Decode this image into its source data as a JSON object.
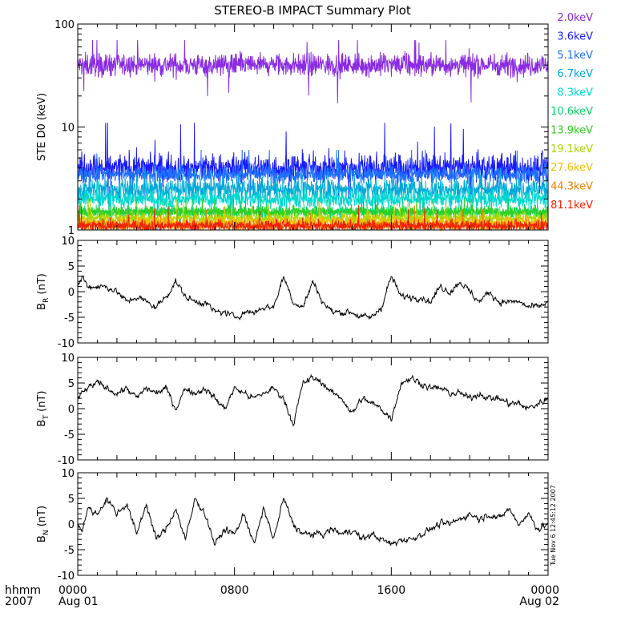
{
  "title": "STEREO-B IMPACT Summary Plot",
  "timestamp": "Tue Nov  6 12:45:12 2007",
  "time_axis": {
    "corner_top": "hhmm",
    "corner_bottom": "2007",
    "ticks": [
      {
        "label": "0000",
        "sub": "Aug 01",
        "hour": 0
      },
      {
        "label": "0800",
        "sub": "",
        "hour": 8
      },
      {
        "label": "1600",
        "sub": "",
        "hour": 16
      },
      {
        "label": "0000",
        "sub": "Aug 02",
        "hour": 24
      }
    ]
  },
  "energy_legend": [
    {
      "label": "2.0keV",
      "color": "#8a2be2"
    },
    {
      "label": "3.6keV",
      "color": "#1a1aff"
    },
    {
      "label": "5.1keV",
      "color": "#1e6fff"
    },
    {
      "label": "6.7keV",
      "color": "#00a8d8"
    },
    {
      "label": "8.3keV",
      "color": "#00d8d0"
    },
    {
      "label": "10.6keV",
      "color": "#00d868"
    },
    {
      "label": "13.9keV",
      "color": "#30d020"
    },
    {
      "label": "19.1keV",
      "color": "#a8d800"
    },
    {
      "label": "27.6keV",
      "color": "#f0c000"
    },
    {
      "label": "44.3keV",
      "color": "#f08000"
    },
    {
      "label": "81.1keV",
      "color": "#f02000"
    }
  ],
  "chart_data": [
    {
      "type": "line",
      "ylabel": "STE D0 (keV)",
      "yscale": "log",
      "ylim": [
        1,
        100
      ],
      "ytick_labels": [
        "1",
        "10",
        "100"
      ],
      "xlim_hours": [
        0,
        24
      ],
      "series": [
        {
          "name": "2.0keV",
          "color": "#8a2be2",
          "mean": 40,
          "range": [
            17,
            70
          ]
        },
        {
          "name": "3.6keV",
          "color": "#1a1aff",
          "mean": 4,
          "range": [
            2,
            11
          ]
        },
        {
          "name": "5.1keV",
          "color": "#1e6fff",
          "mean": 3.5,
          "range": [
            2,
            6
          ]
        },
        {
          "name": "6.7keV",
          "color": "#00a8d8",
          "mean": 2.5,
          "range": [
            1,
            4
          ]
        },
        {
          "name": "8.3keV",
          "color": "#00d8d0",
          "mean": 2,
          "range": [
            1,
            3
          ]
        },
        {
          "name": "10.6keV",
          "color": "#00d868",
          "mean": 1.5,
          "range": [
            1,
            2
          ]
        },
        {
          "name": "13.9keV",
          "color": "#30d020",
          "mean": 1.5,
          "range": [
            1,
            2
          ]
        },
        {
          "name": "19.1keV",
          "color": "#a8d800",
          "mean": 1.3,
          "range": [
            1,
            2
          ]
        },
        {
          "name": "27.6keV",
          "color": "#f0c000",
          "mean": 1.2,
          "range": [
            1,
            2
          ]
        },
        {
          "name": "44.3keV",
          "color": "#f08000",
          "mean": 1.1,
          "range": [
            1,
            2
          ]
        },
        {
          "name": "81.1keV",
          "color": "#f02000",
          "mean": 1.1,
          "range": [
            1,
            2
          ]
        }
      ]
    },
    {
      "type": "line",
      "ylabel_base": "B",
      "ylabel_sub": "R",
      "ylabel_unit": " (nT)",
      "ylim": [
        -10,
        10
      ],
      "ytick_labels": [
        "-10",
        "-5",
        "0",
        "5",
        "10"
      ],
      "xlim_hours": [
        0,
        24
      ],
      "x": [
        0,
        0.25,
        0.5,
        1,
        1.5,
        2,
        2.5,
        3,
        3.5,
        4,
        4.5,
        5,
        5.5,
        6,
        6.5,
        7,
        7.5,
        8,
        8.5,
        9,
        9.5,
        10,
        10.5,
        11,
        11.5,
        12,
        12.5,
        13,
        13.5,
        14,
        14.5,
        15,
        15.5,
        16,
        16.5,
        17,
        17.5,
        18,
        18.5,
        19,
        19.5,
        20,
        20.5,
        21,
        21.5,
        22,
        22.5,
        23,
        23.5,
        24
      ],
      "values": [
        1,
        3,
        1,
        1,
        1,
        0,
        -2,
        -1,
        -2,
        -3,
        -1,
        2,
        -1,
        -2,
        -2,
        -4,
        -4,
        -5,
        -4,
        -4,
        -3,
        -3,
        3,
        -2,
        -3,
        2,
        -2,
        -4,
        -4,
        -4,
        -5,
        -5,
        -3,
        3,
        -1,
        -1,
        -1,
        -2,
        1,
        0,
        2,
        0,
        -2,
        0,
        -2,
        -2,
        -2,
        -3,
        -3,
        -2
      ],
      "series": [
        {
          "name": "",
          "color": "#000000"
        }
      ]
    },
    {
      "type": "line",
      "ylabel_base": "B",
      "ylabel_sub": "T",
      "ylabel_unit": " (nT)",
      "ylim": [
        -10,
        10
      ],
      "ytick_labels": [
        "-10",
        "-5",
        "0",
        "5",
        "10"
      ],
      "xlim_hours": [
        0,
        24
      ],
      "x": [
        0,
        0.25,
        0.5,
        1,
        1.5,
        2,
        2.5,
        3,
        3.5,
        4,
        4.5,
        5,
        5.5,
        6,
        6.5,
        7,
        7.5,
        8,
        8.5,
        9,
        9.5,
        10,
        10.5,
        11,
        11.5,
        12,
        12.5,
        13,
        13.5,
        14,
        14.5,
        15,
        15.5,
        16,
        16.5,
        17,
        17.5,
        18,
        18.5,
        19,
        19.5,
        20,
        20.5,
        21,
        21.5,
        22,
        22.5,
        23,
        23.5,
        24
      ],
      "values": [
        2,
        3,
        4,
        5,
        4,
        3,
        4,
        2,
        4,
        3,
        4,
        0,
        4,
        3,
        4,
        2,
        0,
        4,
        3,
        2,
        3,
        4,
        2,
        -3,
        5,
        6,
        5,
        3,
        2,
        -1,
        2,
        1,
        0,
        -2,
        5,
        6,
        5,
        4,
        4,
        3,
        3,
        2,
        3,
        2,
        2,
        1,
        1,
        0,
        1,
        2
      ],
      "series": [
        {
          "name": "",
          "color": "#000000"
        }
      ]
    },
    {
      "type": "line",
      "ylabel_base": "B",
      "ylabel_sub": "N",
      "ylabel_unit": " (nT)",
      "ylim": [
        -10,
        10
      ],
      "ytick_labels": [
        "-10",
        "-5",
        "0",
        "5",
        "10"
      ],
      "xlim_hours": [
        0,
        24
      ],
      "x": [
        0,
        0.25,
        0.5,
        1,
        1.5,
        2,
        2.5,
        3,
        3.5,
        4,
        4.5,
        5,
        5.5,
        6,
        6.5,
        7,
        7.5,
        8,
        8.5,
        9,
        9.5,
        10,
        10.5,
        11,
        11.5,
        12,
        12.5,
        13,
        13.5,
        14,
        14.5,
        15,
        15.5,
        16,
        16.5,
        17,
        17.5,
        18,
        18.5,
        19,
        19.5,
        20,
        20.5,
        21,
        21.5,
        22,
        22.5,
        23,
        23.5,
        24
      ],
      "values": [
        0,
        -1,
        3,
        2,
        5,
        2,
        4,
        -2,
        4,
        -3,
        -1,
        3,
        -3,
        5,
        2,
        -4,
        -1,
        -2,
        2,
        -4,
        3,
        -3,
        5,
        0,
        -2,
        -2,
        -2,
        -1,
        -2,
        -1,
        -3,
        -2,
        -3,
        -4,
        -3,
        -3,
        -2,
        -1,
        0,
        0,
        1,
        2,
        1,
        2,
        1,
        3,
        0,
        2,
        -1,
        0
      ]
    }
  ]
}
